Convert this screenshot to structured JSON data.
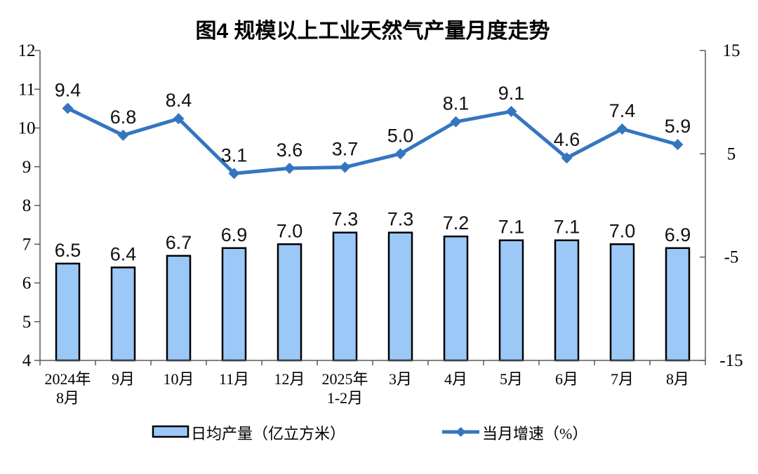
{
  "title": "图4 规模以上工业天然气产量月度走势",
  "chart_data": {
    "type": "bar+line",
    "categories": [
      [
        "2024年",
        "8月"
      ],
      [
        "9月"
      ],
      [
        "10月"
      ],
      [
        "11月"
      ],
      [
        "12月"
      ],
      [
        "2025年",
        "1-2月"
      ],
      [
        "3月"
      ],
      [
        "4月"
      ],
      [
        "5月"
      ],
      [
        "6月"
      ],
      [
        "7月"
      ],
      [
        "8月"
      ]
    ],
    "series": [
      {
        "name": "日均产量（亿立方米）",
        "type": "bar",
        "axis": "left",
        "values": [
          6.5,
          6.4,
          6.7,
          6.9,
          7.0,
          7.3,
          7.3,
          7.2,
          7.1,
          7.1,
          7.0,
          6.9
        ]
      },
      {
        "name": "当月增速（%）",
        "type": "line",
        "axis": "right",
        "values": [
          9.4,
          6.8,
          8.4,
          3.1,
          3.6,
          3.7,
          5.0,
          8.1,
          9.1,
          4.6,
          7.4,
          5.9
        ]
      }
    ],
    "left_axis": {
      "min": 4,
      "max": 12,
      "step": 1,
      "tick_labels": [
        "4",
        "5",
        "6",
        "7",
        "8",
        "9",
        "10",
        "11",
        "12"
      ]
    },
    "right_axis": {
      "min": -15,
      "max": 15,
      "tick_values": [
        15,
        5,
        -5,
        -15
      ],
      "tick_labels": [
        "15",
        "5",
        "-5",
        "-15"
      ]
    },
    "grid": false,
    "data_labels": true,
    "legend_position": "bottom",
    "colors": {
      "bar_fill": "#9CC8F8",
      "bar_border": "#000000",
      "line": "#3575C0",
      "axis": "#595959",
      "label_text": "#000000"
    }
  }
}
